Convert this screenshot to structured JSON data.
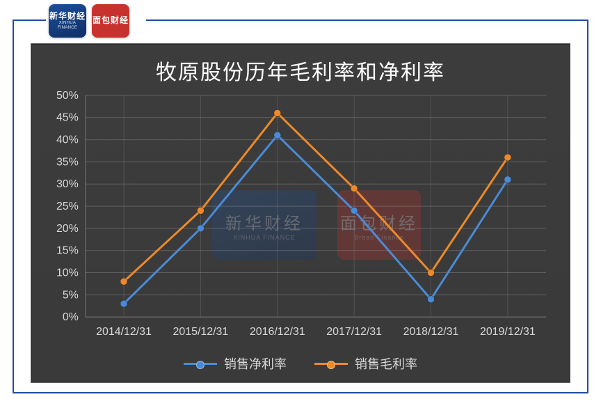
{
  "logos": {
    "xinhua": {
      "cn": "新华财经",
      "en": "XINHUA FINANCE"
    },
    "mianbao": {
      "cn": "面包财经",
      "en": ""
    }
  },
  "watermarks": {
    "left": {
      "cn": "新华财经",
      "en": "XINHUA FINANCE"
    },
    "right": {
      "cn": "面包财经",
      "en": "Bread Finance"
    }
  },
  "chart": {
    "type": "line",
    "title": "牧原股份历年毛利率和净利率",
    "background_color": "#3b3b3b",
    "grid_color": "#808080",
    "axis_label_color": "#d9d9d9",
    "title_color": "#ffffff",
    "title_fontsize": 30,
    "axis_fontsize": 16,
    "line_width": 3,
    "marker_radius": 5,
    "categories": [
      "2014/12/31",
      "2015/12/31",
      "2016/12/31",
      "2017/12/31",
      "2018/12/31",
      "2019/12/31"
    ],
    "ylim": [
      0,
      50
    ],
    "ytick_step": 5,
    "ytick_suffix": "%",
    "series": [
      {
        "key": "net_margin",
        "label": "销售净利率",
        "color": "#4a8bd6",
        "values": [
          3,
          20,
          41,
          24,
          4,
          31
        ]
      },
      {
        "key": "gross_margin",
        "label": "销售毛利率",
        "color": "#ec8a2a",
        "values": [
          8,
          24,
          46,
          29,
          10,
          36
        ]
      }
    ]
  }
}
